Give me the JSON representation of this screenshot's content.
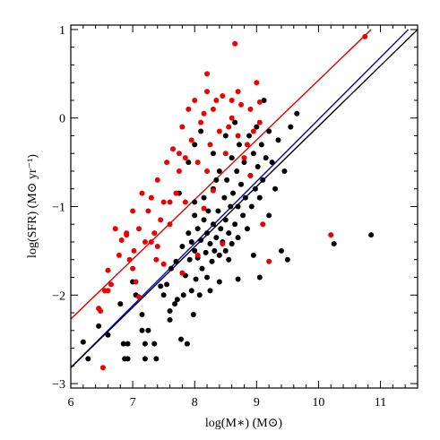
{
  "chart_data": {
    "type": "scatter",
    "title": "",
    "xlabel": "log(M∗) (M⊙)",
    "ylabel": "log(SFR) (M⊙ yr⁻¹)",
    "xlim": [
      6,
      11.6
    ],
    "ylim": [
      -3.05,
      1.05
    ],
    "xticks": [
      6,
      7,
      8,
      9,
      10,
      11
    ],
    "yticks": [
      -3,
      -2,
      -1,
      0,
      1
    ],
    "xtick_labels": [
      "6",
      "7",
      "8",
      "9",
      "10",
      "11"
    ],
    "ytick_labels": [
      "−3",
      "−2",
      "−1",
      "0",
      "1"
    ],
    "grid": false,
    "legend": "none",
    "lines": [
      {
        "color": "#dd0000",
        "points": [
          [
            6.0,
            -2.27
          ],
          [
            10.85,
            1.0
          ]
        ]
      },
      {
        "color": "#0000cc",
        "points": [
          [
            6.0,
            -2.82
          ],
          [
            11.45,
            1.0
          ]
        ]
      },
      {
        "color": "#000000",
        "points": [
          [
            6.0,
            -2.82
          ],
          [
            11.6,
            1.0
          ]
        ]
      }
    ],
    "series": [
      {
        "color": "#000000",
        "points": [
          [
            6.2,
            -2.53
          ],
          [
            6.28,
            -2.72
          ],
          [
            6.45,
            -2.35
          ],
          [
            6.6,
            -2.45
          ],
          [
            6.8,
            -2.1
          ],
          [
            6.85,
            -2.55
          ],
          [
            6.87,
            -2.72
          ],
          [
            6.92,
            -2.55
          ],
          [
            6.92,
            -2.72
          ],
          [
            7.05,
            -2.0
          ],
          [
            7.15,
            -2.22
          ],
          [
            7.15,
            -2.4
          ],
          [
            7.2,
            -2.55
          ],
          [
            7.2,
            -2.72
          ],
          [
            7.25,
            -2.4
          ],
          [
            7.35,
            -2.55
          ],
          [
            7.38,
            -2.72
          ],
          [
            7.5,
            -2.0
          ],
          [
            7.55,
            -1.88
          ],
          [
            7.6,
            -2.28
          ],
          [
            7.62,
            -1.7
          ],
          [
            7.68,
            -2.1
          ],
          [
            7.7,
            -1.62
          ],
          [
            7.72,
            -2.05
          ],
          [
            7.78,
            -2.5
          ],
          [
            7.8,
            -1.45
          ],
          [
            7.82,
            -2.0
          ],
          [
            7.85,
            -1.78
          ],
          [
            7.88,
            -2.55
          ],
          [
            7.9,
            -1.3
          ],
          [
            7.92,
            -1.6
          ],
          [
            7.95,
            -1.95
          ],
          [
            7.98,
            -2.22
          ],
          [
            8.0,
            -1.1
          ],
          [
            8.0,
            -1.5
          ],
          [
            8.02,
            -1.82
          ],
          [
            8.05,
            -1.25
          ],
          [
            8.05,
            -1.58
          ],
          [
            8.08,
            -2.0
          ],
          [
            8.1,
            -1.38
          ],
          [
            8.12,
            -1.7
          ],
          [
            8.15,
            -0.9
          ],
          [
            8.15,
            -1.15
          ],
          [
            8.18,
            -1.52
          ],
          [
            8.2,
            -1.3
          ],
          [
            8.2,
            -1.8
          ],
          [
            8.22,
            -1.05
          ],
          [
            8.25,
            -1.42
          ],
          [
            8.28,
            -1.62
          ],
          [
            8.3,
            -0.8
          ],
          [
            8.3,
            -1.2
          ],
          [
            8.32,
            -1.5
          ],
          [
            8.35,
            -1.35
          ],
          [
            8.38,
            -1.05
          ],
          [
            8.4,
            -1.55
          ],
          [
            8.4,
            -0.6
          ],
          [
            8.42,
            -1.25
          ],
          [
            8.45,
            -1.4
          ],
          [
            8.48,
            -0.9
          ],
          [
            8.5,
            -1.15
          ],
          [
            8.5,
            -1.5
          ],
          [
            8.52,
            -0.7
          ],
          [
            8.55,
            -1.3
          ],
          [
            8.58,
            -1.0
          ],
          [
            8.6,
            -0.45
          ],
          [
            8.6,
            -1.42
          ],
          [
            8.62,
            -0.85
          ],
          [
            8.65,
            -1.2
          ],
          [
            8.68,
            -0.6
          ],
          [
            8.7,
            -1.0
          ],
          [
            8.7,
            -1.35
          ],
          [
            8.72,
            -0.3
          ],
          [
            8.75,
            -0.75
          ],
          [
            8.78,
            -1.1
          ],
          [
            8.8,
            -0.5
          ],
          [
            8.82,
            -0.9
          ],
          [
            8.85,
            -1.25
          ],
          [
            8.88,
            -0.2
          ],
          [
            8.9,
            -0.65
          ],
          [
            8.92,
            -1.0
          ],
          [
            8.95,
            -0.4
          ],
          [
            8.98,
            -0.8
          ],
          [
            9.0,
            -0.1
          ],
          [
            9.02,
            -0.55
          ],
          [
            9.05,
            -0.9
          ],
          [
            9.08,
            -0.3
          ],
          [
            9.1,
            -0.7
          ],
          [
            9.12,
            0.2
          ],
          [
            9.15,
            -0.45
          ],
          [
            9.2,
            -0.15
          ],
          [
            9.25,
            -0.5
          ],
          [
            9.3,
            -0.8
          ],
          [
            9.35,
            -0.25
          ],
          [
            9.45,
            -0.6
          ],
          [
            9.55,
            -0.1
          ],
          [
            9.65,
            0.05
          ],
          [
            8.1,
            -0.15
          ],
          [
            8.0,
            -0.3
          ],
          [
            7.9,
            -0.5
          ],
          [
            7.75,
            -0.85
          ],
          [
            8.3,
            -0.4
          ],
          [
            8.5,
            -0.2
          ],
          [
            8.65,
            -0.05
          ],
          [
            9.2,
            -1.1
          ],
          [
            9.05,
            -1.8
          ],
          [
            8.7,
            -1.82
          ],
          [
            8.95,
            -1.55
          ],
          [
            9.4,
            -1.5
          ],
          [
            9.5,
            -1.6
          ],
          [
            10.25,
            -1.42
          ],
          [
            10.85,
            -1.32
          ],
          [
            7.6,
            -2.18
          ],
          [
            7.0,
            -1.85
          ],
          [
            7.45,
            -1.9
          ],
          [
            8.25,
            -1.95
          ],
          [
            8.55,
            -1.6
          ],
          [
            8.0,
            -0.95
          ],
          [
            8.35,
            -0.7
          ],
          [
            7.95,
            -1.4
          ],
          [
            8.4,
            -1.85
          ]
        ]
      },
      {
        "color": "#ee0000",
        "points": [
          [
            6.45,
            -2.15
          ],
          [
            6.48,
            -2.18
          ],
          [
            6.52,
            -2.82
          ],
          [
            6.55,
            -1.95
          ],
          [
            6.6,
            -1.72
          ],
          [
            6.65,
            -1.88
          ],
          [
            6.72,
            -1.25
          ],
          [
            6.78,
            -1.55
          ],
          [
            6.82,
            -1.38
          ],
          [
            6.9,
            -1.32
          ],
          [
            6.95,
            -1.6
          ],
          [
            7.0,
            -1.05
          ],
          [
            7.02,
            -1.5
          ],
          [
            7.05,
            -1.85
          ],
          [
            7.1,
            -1.25
          ],
          [
            7.15,
            -0.85
          ],
          [
            7.2,
            -1.4
          ],
          [
            7.25,
            -1.05
          ],
          [
            7.3,
            -0.9
          ],
          [
            7.35,
            -1.3
          ],
          [
            7.38,
            -1.6
          ],
          [
            7.4,
            -0.7
          ],
          [
            7.45,
            -1.15
          ],
          [
            7.5,
            -0.95
          ],
          [
            7.55,
            -0.5
          ],
          [
            7.6,
            -1.2
          ],
          [
            7.65,
            -0.35
          ],
          [
            7.7,
            -0.85
          ],
          [
            7.75,
            -0.6
          ],
          [
            7.8,
            -0.1
          ],
          [
            7.85,
            -0.45
          ],
          [
            7.9,
            0.1
          ],
          [
            7.95,
            -0.25
          ],
          [
            8.0,
            0.2
          ],
          [
            8.05,
            -0.5
          ],
          [
            8.1,
            -0.05
          ],
          [
            8.15,
            0.05
          ],
          [
            8.2,
            0.3
          ],
          [
            8.25,
            -0.3
          ],
          [
            8.3,
            0.1
          ],
          [
            8.35,
            0.2
          ],
          [
            8.4,
            -0.15
          ],
          [
            8.45,
            0.25
          ],
          [
            8.5,
            -0.4
          ],
          [
            8.55,
            -0.1
          ],
          [
            8.6,
            0.0
          ],
          [
            8.65,
            0.84
          ],
          [
            8.7,
            -0.2
          ],
          [
            8.75,
            0.15
          ],
          [
            8.8,
            -0.45
          ],
          [
            8.85,
            -0.3
          ],
          [
            8.9,
            0.1
          ],
          [
            8.95,
            -0.15
          ],
          [
            9.0,
            0.4
          ],
          [
            9.05,
            -0.05
          ],
          [
            9.1,
            -1.2
          ],
          [
            9.2,
            -1.62
          ],
          [
            10.2,
            -1.32
          ],
          [
            10.75,
            0.92
          ],
          [
            7.5,
            -1.65
          ],
          [
            7.0,
            -1.7
          ],
          [
            6.9,
            -1.3
          ],
          [
            7.3,
            -1.4
          ],
          [
            8.2,
            -0.6
          ],
          [
            7.85,
            -0.95
          ],
          [
            7.4,
            -1.45
          ],
          [
            8.05,
            -1.55
          ],
          [
            7.8,
            -1.75
          ],
          [
            6.6,
            -1.95
          ],
          [
            7.1,
            -2.02
          ],
          [
            8.45,
            -1.42
          ],
          [
            8.15,
            -1.02
          ],
          [
            7.75,
            -0.4
          ],
          [
            7.6,
            -0.95
          ],
          [
            8.3,
            -0.82
          ],
          [
            8.9,
            -0.65
          ],
          [
            8.2,
            0.5
          ],
          [
            8.7,
            0.3
          ],
          [
            8.6,
            0.2
          ],
          [
            9.05,
            0.18
          ]
        ]
      }
    ]
  }
}
